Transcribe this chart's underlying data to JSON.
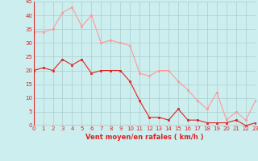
{
  "x": [
    0,
    1,
    2,
    3,
    4,
    5,
    6,
    7,
    8,
    9,
    10,
    11,
    12,
    13,
    14,
    15,
    16,
    17,
    18,
    19,
    20,
    21,
    22,
    23
  ],
  "y_mean": [
    20,
    21,
    20,
    24,
    22,
    24,
    19,
    20,
    20,
    20,
    16,
    9,
    3,
    3,
    2,
    6,
    2,
    2,
    1,
    1,
    1,
    2,
    0,
    1
  ],
  "y_gust": [
    34,
    34,
    35,
    41,
    43,
    36,
    40,
    30,
    31,
    30,
    29,
    19,
    18,
    20,
    20,
    16,
    13,
    9,
    6,
    12,
    2,
    5,
    2,
    9
  ],
  "mean_color": "#dd2222",
  "gust_color": "#ff9999",
  "bg_color": "#cceeee",
  "grid_color": "#aacccc",
  "xlabel": "Vent moyen/en rafales ( km/h )",
  "ylim": [
    0,
    45
  ],
  "xlim": [
    0,
    23
  ],
  "yticks": [
    0,
    5,
    10,
    15,
    20,
    25,
    30,
    35,
    40,
    45
  ],
  "xticks": [
    0,
    1,
    2,
    3,
    4,
    5,
    6,
    7,
    8,
    9,
    10,
    11,
    12,
    13,
    14,
    15,
    16,
    17,
    18,
    19,
    20,
    21,
    22,
    23
  ],
  "tick_fontsize": 5.0,
  "xlabel_fontsize": 6.0
}
